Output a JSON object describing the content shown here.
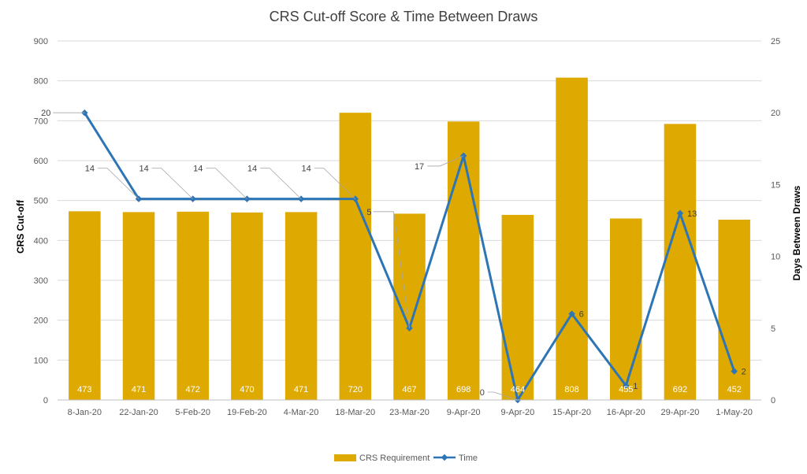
{
  "chart_data": {
    "type": "bar",
    "title": "CRS Cut-off Score & Time Between Draws",
    "categories": [
      "8-Jan-20",
      "22-Jan-20",
      "5-Feb-20",
      "19-Feb-20",
      "4-Mar-20",
      "18-Mar-20",
      "23-Mar-20",
      "9-Apr-20",
      "9-Apr-20",
      "15-Apr-20",
      "16-Apr-20",
      "29-Apr-20",
      "1-May-20"
    ],
    "series": [
      {
        "name": "CRS Requirement",
        "type": "bar",
        "axis": "left",
        "color": "#DEA900",
        "values": [
          473,
          471,
          472,
          470,
          471,
          720,
          467,
          698,
          464,
          808,
          455,
          692,
          452
        ]
      },
      {
        "name": "Time",
        "type": "line",
        "axis": "right",
        "color": "#2E75B6",
        "values": [
          20,
          14,
          14,
          14,
          14,
          14,
          5,
          17,
          0,
          6,
          1,
          13,
          2
        ]
      }
    ],
    "ylabel": "CRS Cut-off",
    "ylim": [
      0,
      900
    ],
    "yticks": [
      0,
      100,
      200,
      300,
      400,
      500,
      600,
      700,
      800,
      900
    ],
    "y2label": "Days Between Draws",
    "y2lim": [
      0,
      25
    ],
    "y2ticks": [
      0,
      5,
      10,
      15,
      20,
      25
    ],
    "grid": true,
    "legend_position": "bottom"
  }
}
